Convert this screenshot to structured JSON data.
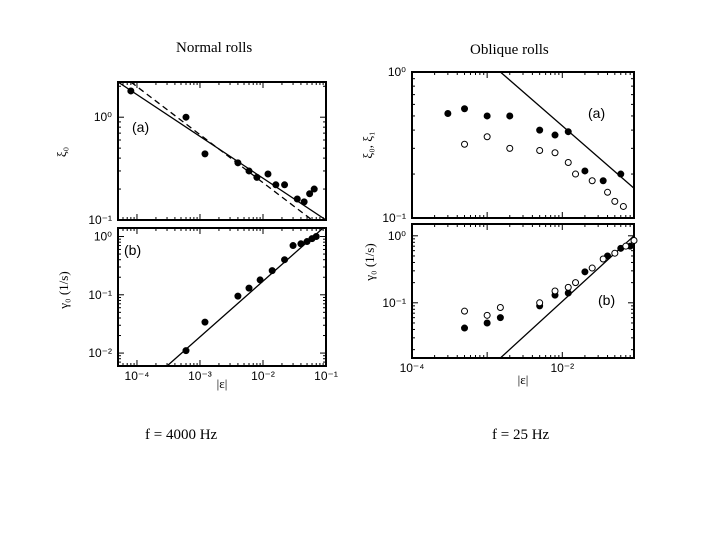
{
  "titles": {
    "left": "Normal rolls",
    "right": "Oblique rolls",
    "left_caption": "f = 4000 Hz",
    "right_caption": "f = 25 Hz"
  },
  "chart_data": [
    {
      "id": "normal-top",
      "type": "scatter",
      "panel_label": "(a)",
      "xscale": "log",
      "yscale": "log",
      "xlim": [
        5e-05,
        0.1
      ],
      "ylim": [
        0.1,
        2.2
      ],
      "ylabel": "ξ₀",
      "yticks": [
        {
          "v": 1,
          "label": "10⁰"
        },
        {
          "v": 0.1,
          "label": "10⁻¹"
        }
      ],
      "xticks": [],
      "series": [
        {
          "marker": "filled",
          "points": [
            [
              8e-05,
              1.8
            ],
            [
              0.0006,
              1.0
            ],
            [
              0.0012,
              0.44
            ],
            [
              0.004,
              0.36
            ],
            [
              0.006,
              0.3
            ],
            [
              0.008,
              0.26
            ],
            [
              0.012,
              0.28
            ],
            [
              0.016,
              0.22
            ],
            [
              0.022,
              0.22
            ],
            [
              0.035,
              0.16
            ],
            [
              0.045,
              0.15
            ],
            [
              0.055,
              0.18
            ],
            [
              0.065,
              0.2
            ]
          ]
        }
      ],
      "lines": [
        {
          "style": "solid",
          "points": [
            [
              5e-05,
              2.2
            ],
            [
              0.1,
              0.1
            ]
          ]
        },
        {
          "style": "dashed",
          "points": [
            [
              8e-05,
              2.2
            ],
            [
              0.06,
              0.1
            ]
          ]
        }
      ]
    },
    {
      "id": "normal-bottom",
      "type": "scatter",
      "panel_label": "(b)",
      "xscale": "log",
      "yscale": "log",
      "xlim": [
        5e-05,
        0.1
      ],
      "ylim": [
        0.006,
        1.4
      ],
      "ylabel": "γ₀ (1/s)",
      "yticks": [
        {
          "v": 1,
          "label": "10⁰"
        },
        {
          "v": 0.1,
          "label": "10⁻¹"
        },
        {
          "v": 0.01,
          "label": "10⁻²"
        }
      ],
      "xticks": [
        {
          "v": 0.0001,
          "label": "10⁻⁴"
        },
        {
          "v": 0.001,
          "label": "10⁻³"
        },
        {
          "v": 0.01,
          "label": "10⁻²"
        },
        {
          "v": 0.1,
          "label": "10⁻¹"
        }
      ],
      "xlabel": "|ε|",
      "series": [
        {
          "marker": "filled",
          "points": [
            [
              0.0006,
              0.011
            ],
            [
              0.0012,
              0.034
            ],
            [
              0.004,
              0.095
            ],
            [
              0.006,
              0.13
            ],
            [
              0.009,
              0.18
            ],
            [
              0.014,
              0.26
            ],
            [
              0.022,
              0.4
            ],
            [
              0.03,
              0.7
            ],
            [
              0.04,
              0.75
            ],
            [
              0.05,
              0.82
            ],
            [
              0.06,
              0.92
            ],
            [
              0.07,
              1.0
            ]
          ]
        }
      ],
      "lines": [
        {
          "style": "solid",
          "points": [
            [
              0.0003,
              0.006
            ],
            [
              0.09,
              1.4
            ]
          ]
        }
      ]
    },
    {
      "id": "oblique-top",
      "type": "scatter",
      "panel_label": "(a)",
      "xscale": "log",
      "yscale": "log",
      "xlim": [
        0.0001,
        0.09
      ],
      "ylim": [
        0.1,
        1.0
      ],
      "ylabel": "ξ₀, ξ₁",
      "yticks": [
        {
          "v": 1,
          "label": "10⁰"
        },
        {
          "v": 0.1,
          "label": "10⁻¹"
        }
      ],
      "xticks": [],
      "series": [
        {
          "marker": "filled",
          "points": [
            [
              0.0003,
              0.52
            ],
            [
              0.0005,
              0.56
            ],
            [
              0.001,
              0.5
            ],
            [
              0.002,
              0.5
            ],
            [
              0.005,
              0.4
            ],
            [
              0.008,
              0.37
            ],
            [
              0.012,
              0.39
            ],
            [
              0.02,
              0.21
            ],
            [
              0.035,
              0.18
            ],
            [
              0.06,
              0.2
            ]
          ]
        },
        {
          "marker": "open",
          "points": [
            [
              0.0005,
              0.32
            ],
            [
              0.001,
              0.36
            ],
            [
              0.002,
              0.3
            ],
            [
              0.005,
              0.29
            ],
            [
              0.008,
              0.28
            ],
            [
              0.012,
              0.24
            ],
            [
              0.015,
              0.2
            ],
            [
              0.025,
              0.18
            ],
            [
              0.04,
              0.15
            ],
            [
              0.05,
              0.13
            ],
            [
              0.065,
              0.12
            ]
          ]
        }
      ],
      "lines": [
        {
          "style": "solid",
          "points": [
            [
              0.0015,
              1.0
            ],
            [
              0.09,
              0.16
            ]
          ]
        }
      ]
    },
    {
      "id": "oblique-bottom",
      "type": "scatter",
      "panel_label": "(b)",
      "xscale": "log",
      "yscale": "log",
      "xlim": [
        0.0001,
        0.09
      ],
      "ylim": [
        0.015,
        1.5
      ],
      "ylabel": "γ₀ (1/s)",
      "yticks": [
        {
          "v": 1,
          "label": "10⁰"
        },
        {
          "v": 0.1,
          "label": "10⁻¹"
        }
      ],
      "xticks": [
        {
          "v": 0.0001,
          "label": "10⁻⁴"
        },
        {
          "v": 0.01,
          "label": "10⁻²"
        }
      ],
      "xlabel": "|ε|",
      "series": [
        {
          "marker": "filled",
          "points": [
            [
              0.0005,
              0.042
            ],
            [
              0.001,
              0.05
            ],
            [
              0.0015,
              0.06
            ],
            [
              0.005,
              0.09
            ],
            [
              0.008,
              0.13
            ],
            [
              0.012,
              0.14
            ],
            [
              0.02,
              0.29
            ],
            [
              0.04,
              0.5
            ],
            [
              0.06,
              0.65
            ],
            [
              0.08,
              0.7
            ]
          ]
        },
        {
          "marker": "open",
          "points": [
            [
              0.0005,
              0.075
            ],
            [
              0.001,
              0.065
            ],
            [
              0.0015,
              0.085
            ],
            [
              0.005,
              0.1
            ],
            [
              0.008,
              0.15
            ],
            [
              0.012,
              0.17
            ],
            [
              0.015,
              0.2
            ],
            [
              0.025,
              0.33
            ],
            [
              0.035,
              0.45
            ],
            [
              0.05,
              0.55
            ],
            [
              0.07,
              0.7
            ],
            [
              0.09,
              0.85
            ]
          ]
        }
      ],
      "lines": [
        {
          "style": "solid",
          "points": [
            [
              0.0015,
              0.015
            ],
            [
              0.09,
              1.0
            ]
          ]
        }
      ]
    }
  ]
}
